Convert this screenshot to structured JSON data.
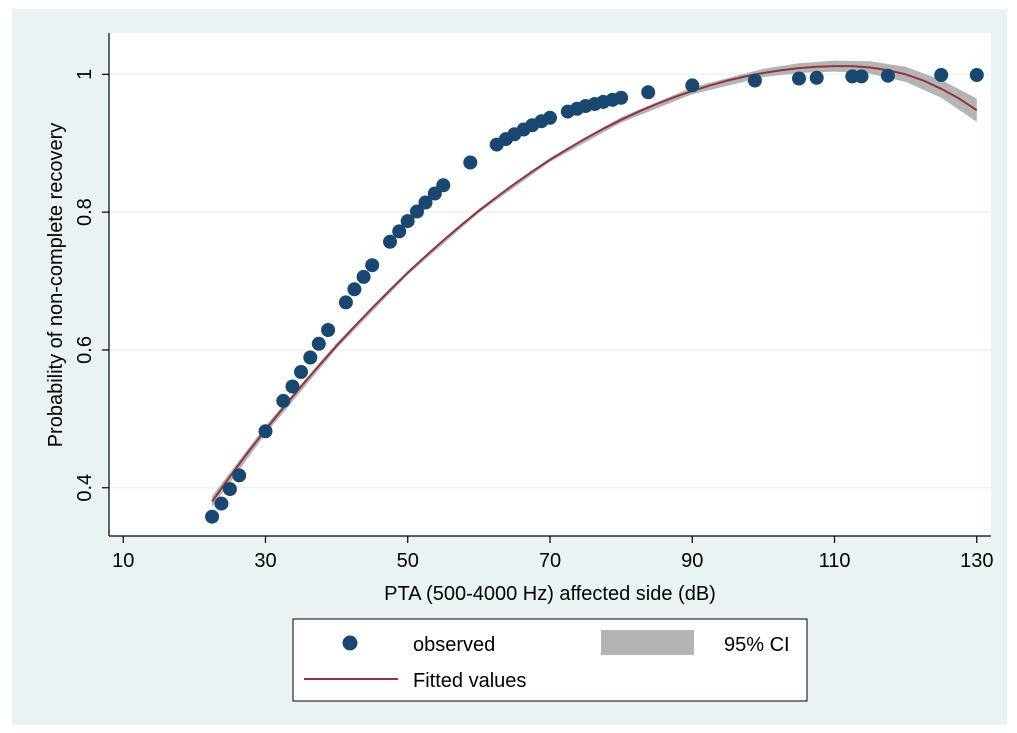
{
  "chart_data": {
    "type": "scatter",
    "xlabel": "PTA (500-4000 Hz) affected side (dB)",
    "ylabel": "Probability of non-complete recovery",
    "xlim": [
      8,
      132
    ],
    "ylim": [
      0.33,
      1.06
    ],
    "x_ticks": [
      "10",
      "30",
      "50",
      "70",
      "90",
      "110",
      "130"
    ],
    "y_ticks": [
      "0.4",
      "0.6",
      "0.8",
      "1"
    ],
    "grid": "horizontal",
    "legend_position": "bottom",
    "colors": {
      "observed": "#1a476f",
      "fitted": "#90353b",
      "ci": "#b4b4b4",
      "background": "#eaf2f3",
      "plot_area": "#ffffff",
      "grid": "#eaf2f3"
    },
    "series": [
      {
        "name": "observed",
        "kind": "scatter",
        "points": [
          [
            22.5,
            0.358
          ],
          [
            23.8,
            0.377
          ],
          [
            25.0,
            0.398
          ],
          [
            26.3,
            0.418
          ],
          [
            30.0,
            0.482
          ],
          [
            32.5,
            0.526
          ],
          [
            33.8,
            0.547
          ],
          [
            35.0,
            0.568
          ],
          [
            36.3,
            0.589
          ],
          [
            37.5,
            0.609
          ],
          [
            38.8,
            0.629
          ],
          [
            41.3,
            0.669
          ],
          [
            42.5,
            0.688
          ],
          [
            43.8,
            0.706
          ],
          [
            45.0,
            0.723
          ],
          [
            47.5,
            0.757
          ],
          [
            48.8,
            0.772
          ],
          [
            50.0,
            0.787
          ],
          [
            51.3,
            0.801
          ],
          [
            52.5,
            0.814
          ],
          [
            53.8,
            0.827
          ],
          [
            55.0,
            0.839
          ],
          [
            58.8,
            0.872
          ],
          [
            62.5,
            0.898
          ],
          [
            63.8,
            0.906
          ],
          [
            65.0,
            0.913
          ],
          [
            66.3,
            0.92
          ],
          [
            67.5,
            0.926
          ],
          [
            68.8,
            0.932
          ],
          [
            70.0,
            0.937
          ],
          [
            72.5,
            0.946
          ],
          [
            73.8,
            0.95
          ],
          [
            75.0,
            0.954
          ],
          [
            76.3,
            0.957
          ],
          [
            77.5,
            0.96
          ],
          [
            78.8,
            0.963
          ],
          [
            80.0,
            0.966
          ],
          [
            83.8,
            0.974
          ],
          [
            90.0,
            0.984
          ],
          [
            98.8,
            0.991
          ],
          [
            105.0,
            0.994
          ],
          [
            107.5,
            0.995
          ],
          [
            112.5,
            0.997
          ],
          [
            113.8,
            0.997
          ],
          [
            117.5,
            0.998
          ],
          [
            125.0,
            0.999
          ],
          [
            130.0,
            0.999
          ]
        ]
      },
      {
        "name": "Fitted values",
        "kind": "line",
        "x": [
          22.5,
          25,
          27.5,
          30,
          32.5,
          35,
          37.5,
          40,
          42.5,
          45,
          47.5,
          50,
          52.5,
          55,
          57.5,
          60,
          62.5,
          65,
          67.5,
          70,
          72.5,
          75,
          77.5,
          80,
          82.5,
          85,
          87.5,
          90,
          92.5,
          95,
          97.5,
          100,
          102.5,
          105,
          107.5,
          110,
          112.5,
          115,
          117.5,
          120,
          122.5,
          125,
          127.5,
          130
        ],
        "y": [
          0.38,
          0.416,
          0.451,
          0.484,
          0.516,
          0.547,
          0.577,
          0.606,
          0.634,
          0.661,
          0.687,
          0.712,
          0.736,
          0.759,
          0.781,
          0.802,
          0.822,
          0.841,
          0.859,
          0.876,
          0.892,
          0.907,
          0.921,
          0.934,
          0.946,
          0.957,
          0.967,
          0.976,
          0.984,
          0.991,
          0.997,
          1.002,
          1.006,
          1.009,
          1.011,
          1.012,
          1.012,
          1.01,
          1.006,
          1.0,
          0.991,
          0.979,
          0.965,
          0.948
        ]
      },
      {
        "name": "95% CI",
        "kind": "band",
        "x": [
          22.5,
          30,
          40,
          50,
          60,
          70,
          80,
          90,
          100,
          105,
          110,
          115,
          120,
          125,
          130
        ],
        "lower": [
          0.372,
          0.478,
          0.602,
          0.709,
          0.799,
          0.873,
          0.93,
          0.971,
          0.996,
          1.002,
          1.004,
          1.001,
          0.989,
          0.966,
          0.931
        ],
        "upper": [
          0.388,
          0.49,
          0.61,
          0.715,
          0.805,
          0.879,
          0.938,
          0.981,
          1.008,
          1.016,
          1.02,
          1.019,
          1.011,
          0.992,
          0.965
        ]
      }
    ],
    "legend": {
      "observed": "observed",
      "ci": "95% CI",
      "fitted": "Fitted values"
    }
  }
}
